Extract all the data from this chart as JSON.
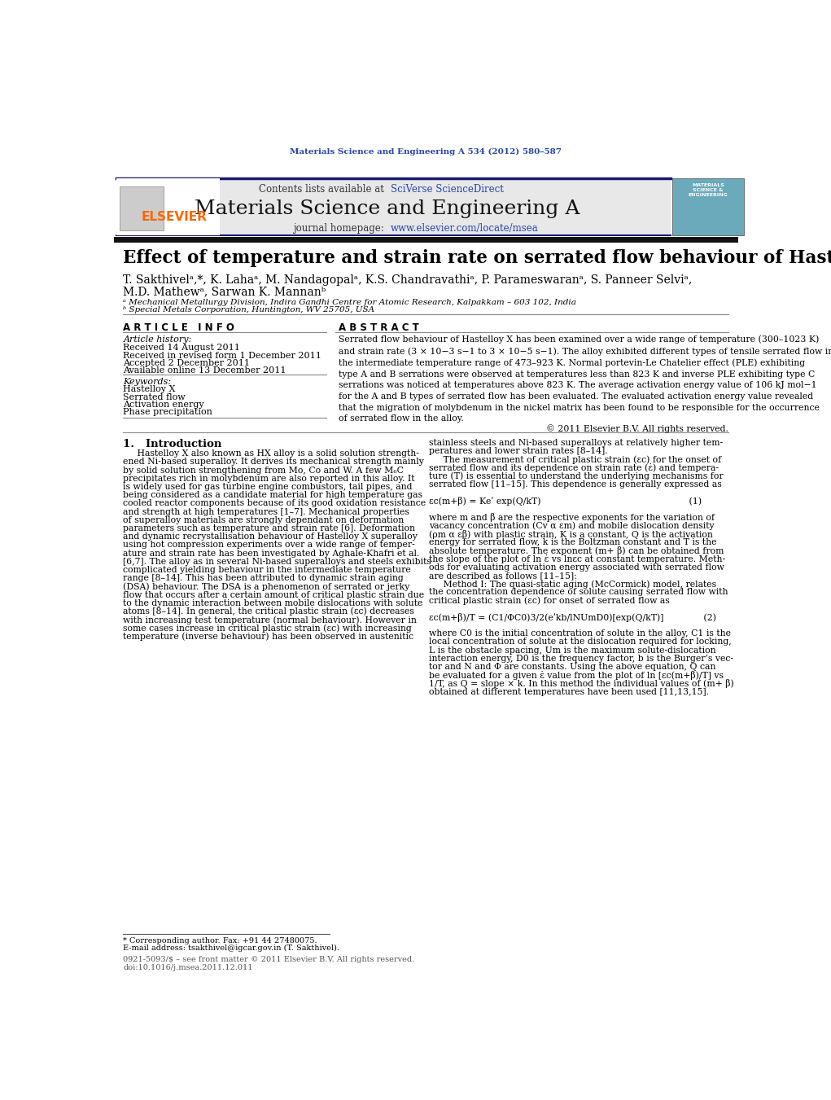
{
  "page_width": 10.21,
  "page_height": 13.51,
  "background_color": "#ffffff",
  "top_bar_citation": "Materials Science and Engineering A 534 (2012) 580–587",
  "journal_name": "Materials Science and Engineering A",
  "contents_text": "Contents lists available at ",
  "sciverse_text": "SciVerse ScienceDirect",
  "journal_homepage": "journal homepage: ",
  "homepage_url": "www.elsevier.com/locate/msea",
  "article_title": "Effect of temperature and strain rate on serrated flow behaviour of Hastelloy X",
  "authors_line1": "T. Sakthivelᵃ,*, K. Lahaᵃ, M. Nandagopalᵃ, K.S. Chandravathiᵃ, P. Parameswaranᵃ, S. Panneer Selviᵃ,",
  "authors_line2": "M.D. Mathewᵃ, Sarwan K. Mannanᵇ",
  "affiliation_a": "ᵃ Mechanical Metallurgy Division, Indira Gandhi Centre for Atomic Research, Kalpakkam – 603 102, India",
  "affiliation_b": "ᵇ Special Metals Corporation, Huntington, WV 25705, USA",
  "article_info_header": "A R T I C L E   I N F O",
  "abstract_header": "A B S T R A C T",
  "article_history_header": "Article history:",
  "received": "Received 14 August 2011",
  "received_revised": "Received in revised form 1 December 2011",
  "accepted": "Accepted 2 December 2011",
  "available": "Available online 13 December 2011",
  "keywords_header": "Keywords:",
  "keyword1": "Hastelloy X",
  "keyword2": "Serrated flow",
  "keyword3": "Activation energy",
  "keyword4": "Phase precipitation",
  "abstract_text": "Serrated flow behaviour of Hastelloy X has been examined over a wide range of temperature (300–1023 K)\nand strain rate (3 × 10−3 s−1 to 3 × 10−5 s−1). The alloy exhibited different types of tensile serrated flow in\nthe intermediate temperature range of 473–923 K. Normal portevin-Le Chatelier effect (PLE) exhibiting\ntype A and B serrations were observed at temperatures less than 823 K and inverse PLE exhibiting type C\nserrations was noticed at temperatures above 823 K. The average activation energy value of 106 kJ mol−1\nfor the A and B types of serrated flow has been evaluated. The evaluated activation energy value revealed\nthat the migration of molybdenum in the nickel matrix has been found to be responsible for the occurrence\nof serrated flow in the alloy.",
  "copyright": "© 2011 Elsevier B.V. All rights reserved.",
  "section1_header": "1.   Introduction",
  "intro_col1_lines": [
    "     Hastelloy X also known as HX alloy is a solid solution strength-",
    "ened Ni-based superalloy. It derives its mechanical strength mainly",
    "by solid solution strengthening from Mo, Co and W. A few M₆C",
    "precipitates rich in molybdenum are also reported in this alloy. It",
    "is widely used for gas turbine engine combustors, tail pipes, and",
    "being considered as a candidate material for high temperature gas",
    "cooled reactor components because of its good oxidation resistance",
    "and strength at high temperatures [1–7]. Mechanical properties",
    "of superalloy materials are strongly dependant on deformation",
    "parameters such as temperature and strain rate [6]. Deformation",
    "and dynamic recrystallisation behaviour of Hastelloy X superalloy",
    "using hot compression experiments over a wide range of temper-",
    "ature and strain rate has been investigated by Aghale-Khafri et al.",
    "[6,7]. The alloy as in several Ni-based superalloys and steels exhibits",
    "complicated yielding behaviour in the intermediate temperature",
    "range [8–14]. This has been attributed to dynamic strain aging",
    "(DSA) behaviour. The DSA is a phenomenon of serrated or jerky",
    "flow that occurs after a certain amount of critical plastic strain due",
    "to the dynamic interaction between mobile dislocations with solute",
    "atoms [8–14]. In general, the critical plastic strain (εc) decreases",
    "with increasing test temperature (normal behaviour). However in",
    "some cases increase in critical plastic strain (εc) with increasing",
    "temperature (inverse behaviour) has been observed in austenitic"
  ],
  "intro_col2_lines": [
    "stainless steels and Ni-based superalloys at relatively higher tem-",
    "peratures and lower strain rates [8–14].",
    "     The measurement of critical plastic strain (εc) for the onset of",
    "serrated flow and its dependence on strain rate (ε̇) and tempera-",
    "ture (T) is essential to understand the underlying mechanisms for",
    "serrated flow [11–15]. This dependence is generally expressed as",
    "",
    "εc(m+β) = Keʹ exp(Q/kT)                                                    (1)",
    "",
    "where m and β are the respective exponents for the variation of",
    "vacancy concentration (Cv α εm) and mobile dislocation density",
    "(ρm α εβ) with plastic strain, K is a constant, Q is the activation",
    "energy for serrated flow, k is the Boltzman constant and T is the",
    "absolute temperature. The exponent (m+ β) can be obtained from",
    "the slope of the plot of ln ε̇ vs lnεc at constant temperature. Meth-",
    "ods for evaluating activation energy associated with serrated flow",
    "are described as follows [11–15]:",
    "     Method I: The quasi-static aging (McCormick) model, relates",
    "the concentration dependence of solute causing serrated flow with",
    "critical plastic strain (εc) for onset of serrated flow as",
    "",
    "εc(m+β)/T = (C1/ΦC0)3/2(eʹkb/lNUmD0)[exp(Q/kT)]              (2)",
    "",
    "where C0 is the initial concentration of solute in the alloy, C1 is the",
    "local concentration of solute at the dislocation required for locking,",
    "L is the obstacle spacing, Um is the maximum solute-dislocation",
    "interaction energy, D0 is the frequency factor, b is the Burger’s vec-",
    "tor and N and Φ are constants. Using the above equation, Q can",
    "be evaluated for a given ε̇ value from the plot of ln [εc(m+β)/T] vs",
    "1/T, as Q = slope × k. In this method the individual values of (m+ β)",
    "obtained at different temperatures have been used [11,13,15]."
  ],
  "footnote1": "* Corresponding author. Fax: +91 44 27480075.",
  "footnote2": "E-mail address: tsakthivel@igcar.gov.in (T. Sakthivel).",
  "issn_line": "0921-5093/$ – see front matter © 2011 Elsevier B.V. All rights reserved.",
  "doi_line": "doi:10.1016/j.msea.2011.12.011",
  "header_bg_color": "#e8e8e8",
  "header_border_color": "#1a1a6e",
  "elsevier_color": "#ff6600",
  "link_color": "#2244aa",
  "title_citation_color": "#2244aa"
}
